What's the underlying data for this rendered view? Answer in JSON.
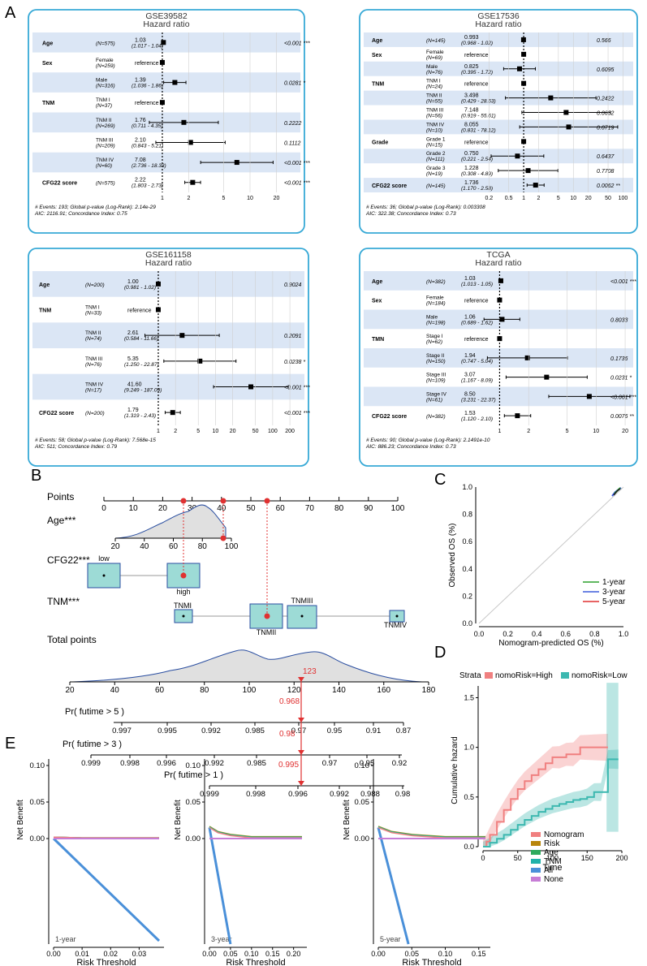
{
  "panel_letters": {
    "A": "A",
    "B": "B",
    "C": "C",
    "D": "D",
    "E": "E"
  },
  "forest": [
    {
      "title": "GSE39582",
      "subtitle": "Hazard ratio",
      "scale": "log",
      "ticks": [
        "1",
        "2",
        "5",
        "10",
        "20"
      ],
      "rows": [
        {
          "var": "Age",
          "level": "",
          "n": "(N=575)",
          "hr": "1.03",
          "ci": "(1.017 - 1.04)",
          "p": "<0.001 ***",
          "est": 1.03,
          "lo": 1.017,
          "hi": 1.04
        },
        {
          "var": "Sex",
          "level": "Female",
          "n": "(N=259)",
          "hr": "reference",
          "ci": "",
          "p": "",
          "est": 1,
          "lo": null,
          "hi": null
        },
        {
          "var": "",
          "level": "Male",
          "n": "(N=316)",
          "hr": "1.39",
          "ci": "(1.036 - 1.86)",
          "p": "0.0281 *",
          "est": 1.39,
          "lo": 1.036,
          "hi": 1.86
        },
        {
          "var": "TNM",
          "level": "TNM I",
          "n": "(N=37)",
          "hr": "reference",
          "ci": "",
          "p": "",
          "est": 1,
          "lo": null,
          "hi": null
        },
        {
          "var": "",
          "level": "TNM II",
          "n": "(N=269)",
          "hr": "1.76",
          "ci": "(0.711 - 4.35)",
          "p": "0.2222",
          "est": 1.76,
          "lo": 0.711,
          "hi": 4.35
        },
        {
          "var": "",
          "level": "TNM III",
          "n": "(N=209)",
          "hr": "2.10",
          "ci": "(0.843 - 5.21)",
          "p": "0.1112",
          "est": 2.1,
          "lo": 0.843,
          "hi": 5.21
        },
        {
          "var": "",
          "level": "TNM IV",
          "n": "(N=60)",
          "hr": "7.08",
          "ci": "(2.736 - 18.33)",
          "p": "<0.001 ***",
          "est": 7.08,
          "lo": 2.736,
          "hi": 18.33
        },
        {
          "var": "CFG22 score",
          "level": "",
          "n": "(N=575)",
          "hr": "2.22",
          "ci": "(1.803 - 2.73)",
          "p": "<0.001 ***",
          "est": 2.22,
          "lo": 1.803,
          "hi": 2.73
        }
      ],
      "footer1": "# Events: 193; Global p-value (Log-Rank): 2.14e-29",
      "footer2": "AIC: 2116.91; Concordance Index: 0.75"
    },
    {
      "title": "GSE17536",
      "subtitle": "Hazard ratio",
      "scale": "log",
      "ticks": [
        "0.2",
        "0.5",
        "1",
        "2",
        "5",
        "10",
        "20",
        "50",
        "100"
      ],
      "rows": [
        {
          "var": "Age",
          "level": "",
          "n": "(N=145)",
          "hr": "0.993",
          "ci": "(0.968 - 1.02)",
          "p": "0.566",
          "est": 0.993,
          "lo": 0.968,
          "hi": 1.02
        },
        {
          "var": "Sex",
          "level": "Female",
          "n": "(N=69)",
          "hr": "reference",
          "ci": "",
          "p": "",
          "est": 1,
          "lo": null,
          "hi": null
        },
        {
          "var": "",
          "level": "Male",
          "n": "(N=76)",
          "hr": "0.825",
          "ci": "(0.395 - 1.72)",
          "p": "0.6095",
          "est": 0.825,
          "lo": 0.395,
          "hi": 1.72
        },
        {
          "var": "TNM",
          "level": "TNM I",
          "n": "(N=24)",
          "hr": "reference",
          "ci": "",
          "p": "",
          "est": 1,
          "lo": null,
          "hi": null
        },
        {
          "var": "",
          "level": "TNM II",
          "n": "(N=55)",
          "hr": "3.498",
          "ci": "(0.429 - 28.53)",
          "p": "0.2422",
          "est": 3.498,
          "lo": 0.429,
          "hi": 28.53
        },
        {
          "var": "",
          "level": "TNM III",
          "n": "(N=56)",
          "hr": "7.148",
          "ci": "(0.919 - 55.61)",
          "p": "0.0602",
          "est": 7.148,
          "lo": 0.919,
          "hi": 55.61
        },
        {
          "var": "",
          "level": "TNM IV",
          "n": "(N=10)",
          "hr": "8.055",
          "ci": "(0.831 - 78.12)",
          "p": "0.0719",
          "est": 8.055,
          "lo": 0.831,
          "hi": 78.12
        },
        {
          "var": "Grade",
          "level": "Grade 1",
          "n": "(N=15)",
          "hr": "reference",
          "ci": "",
          "p": "",
          "est": 1,
          "lo": null,
          "hi": null
        },
        {
          "var": "",
          "level": "Grade 2",
          "n": "(N=111)",
          "hr": "0.750",
          "ci": "(0.221 - 2.54)",
          "p": "0.6437",
          "est": 0.75,
          "lo": 0.221,
          "hi": 2.54
        },
        {
          "var": "",
          "level": "Grade 3",
          "n": "(N=19)",
          "hr": "1.228",
          "ci": "(0.308 - 4.89)",
          "p": "0.7708",
          "est": 1.228,
          "lo": 0.308,
          "hi": 4.89
        },
        {
          "var": "CFG22 score",
          "level": "",
          "n": "(N=145)",
          "hr": "1.736",
          "ci": "(1.170 - 2.58)",
          "p": "0.0062 **",
          "est": 1.736,
          "lo": 1.17,
          "hi": 2.58
        }
      ],
      "footer1": "# Events: 36; Global p-value (Log-Rank): 0.003308",
      "footer2": "AIC: 322.38; Concordance Index: 0.73"
    },
    {
      "title": "GSE161158",
      "subtitle": "Hazard ratio",
      "scale": "log",
      "ticks": [
        "1",
        "2",
        "5",
        "10",
        "20",
        "50",
        "100",
        "200"
      ],
      "rows": [
        {
          "var": "Age",
          "level": "",
          "n": "(N=200)",
          "hr": "1.00",
          "ci": "(0.981 - 1.02)",
          "p": "0.9024",
          "est": 1.0,
          "lo": 0.981,
          "hi": 1.02
        },
        {
          "var": "TNM",
          "level": "TNM I",
          "n": "(N=33)",
          "hr": "reference",
          "ci": "",
          "p": "",
          "est": 1,
          "lo": null,
          "hi": null
        },
        {
          "var": "",
          "level": "TNM II",
          "n": "(N=74)",
          "hr": "2.61",
          "ci": "(0.584 - 11.66)",
          "p": "0.2091",
          "est": 2.61,
          "lo": 0.584,
          "hi": 11.66
        },
        {
          "var": "",
          "level": "TNM III",
          "n": "(N=76)",
          "hr": "5.35",
          "ci": "(1.250 - 22.87)",
          "p": "0.0238 *",
          "est": 5.35,
          "lo": 1.25,
          "hi": 22.87
        },
        {
          "var": "",
          "level": "TNM IV",
          "n": "(N=17)",
          "hr": "41.60",
          "ci": "(9.249 - 187.09)",
          "p": "<0.001 ***",
          "est": 41.6,
          "lo": 9.249,
          "hi": 187.09
        },
        {
          "var": "CFG22 score",
          "level": "",
          "n": "(N=200)",
          "hr": "1.79",
          "ci": "(1.319 - 2.43)",
          "p": "<0.001 ***",
          "est": 1.79,
          "lo": 1.319,
          "hi": 2.43
        }
      ],
      "footer1": "# Events: 58; Global p-value (Log-Rank): 7.568e-15",
      "footer2": "AIC: 511; Concordance Index: 0.79"
    },
    {
      "title": "TCGA",
      "subtitle": "Hazard ratio",
      "scale": "log",
      "ticks": [
        "1",
        "2",
        "5",
        "10",
        "20"
      ],
      "rows": [
        {
          "var": "Age",
          "level": "",
          "n": "(N=382)",
          "hr": "1.03",
          "ci": "(1.013 - 1.05)",
          "p": "<0.001 ***",
          "est": 1.03,
          "lo": 1.013,
          "hi": 1.05
        },
        {
          "var": "Sex",
          "level": "Female",
          "n": "(N=184)",
          "hr": "reference",
          "ci": "",
          "p": "",
          "est": 1,
          "lo": null,
          "hi": null
        },
        {
          "var": "",
          "level": "Male",
          "n": "(N=198)",
          "hr": "1.06",
          "ci": "(0.689 - 1.62)",
          "p": "0.8033",
          "est": 1.06,
          "lo": 0.689,
          "hi": 1.62
        },
        {
          "var": "TMN",
          "level": "Stage I",
          "n": "(N=62)",
          "hr": "reference",
          "ci": "",
          "p": "",
          "est": 1,
          "lo": null,
          "hi": null
        },
        {
          "var": "",
          "level": "Stage II",
          "n": "(N=150)",
          "hr": "1.94",
          "ci": "(0.747 - 5.04)",
          "p": "0.1736",
          "est": 1.94,
          "lo": 0.747,
          "hi": 5.04
        },
        {
          "var": "",
          "level": "Stage III",
          "n": "(N=109)",
          "hr": "3.07",
          "ci": "(1.167 - 8.09)",
          "p": "0.0231 *",
          "est": 3.07,
          "lo": 1.167,
          "hi": 8.09
        },
        {
          "var": "",
          "level": "Stage IV",
          "n": "(N=61)",
          "hr": "8.50",
          "ci": "(3.231 - 22.37)",
          "p": "<0.001 ***",
          "est": 8.5,
          "lo": 3.231,
          "hi": 22.37
        },
        {
          "var": "CFG22 score",
          "level": "",
          "n": "(N=382)",
          "hr": "1.53",
          "ci": "(1.120 - 2.10)",
          "p": "0.0076 **",
          "est": 1.53,
          "lo": 1.12,
          "hi": 2.1
        }
      ],
      "footer1": "# Events: 90; Global p-value (Log-Rank): 2.1491e-10",
      "footer2": "AIC: 886.23; Concordance Index: 0.73"
    }
  ],
  "nomogram": {
    "points_label": "Points",
    "points_ticks": [
      "0",
      "10",
      "20",
      "30",
      "40",
      "50",
      "60",
      "70",
      "80",
      "90",
      "100"
    ],
    "age_label": "Age***",
    "age_ticks": [
      "20",
      "40",
      "60",
      "80",
      "100"
    ],
    "cfg_label": "CFG22***",
    "cfg_low": "low",
    "cfg_high": "high",
    "tnm_label": "TNM***",
    "tnm_levels": [
      "TNMI",
      "TNMII",
      "TNMIII",
      "TNMIV"
    ],
    "total_label": "Total points",
    "total_ticks": [
      "20",
      "40",
      "60",
      "80",
      "100",
      "120",
      "140",
      "160",
      "180"
    ],
    "total_value": "123",
    "pr5_label": "Pr( futime > 5 )",
    "pr5_ticks": [
      "0.997",
      "0.995",
      "0.992",
      "0.985",
      "0.97",
      "0.95",
      "0.91",
      "0.87"
    ],
    "pr5_value": "0.968",
    "pr3_label": "Pr( futime > 3 )",
    "pr3_ticks": [
      "0.999",
      "0.998",
      "0.996",
      "0.992",
      "0.985",
      "0.97",
      "0.95",
      "0.92"
    ],
    "pr3_value": "0.98",
    "pr1_label": "Pr( futime > 1 )",
    "pr1_ticks": [
      "0.999",
      "0.998",
      "0.996",
      "0.992",
      "0.988",
      "0.98"
    ],
    "pr1_value": "0.995"
  },
  "calibration": {
    "ylabel": "Observed OS (%)",
    "xlabel": "Nomogram-predicted OS (%)",
    "ticks": [
      "0.0",
      "0.2",
      "0.4",
      "0.6",
      "0.8",
      "1.0"
    ],
    "legend": [
      {
        "label": "1-year",
        "color": "#2ca02c"
      },
      {
        "label": "3-year",
        "color": "#3b5bdb"
      },
      {
        "label": "5-year",
        "color": "#e03131"
      }
    ]
  },
  "chart_data": [
    {
      "type": "line",
      "title": "Cumulative hazard",
      "xlabel": "Time",
      "ylabel": "Cumulative hazard",
      "strata_label": "Strata",
      "legend": [
        {
          "label": "nomoRisk=High",
          "color": "#f08080"
        },
        {
          "label": "nomoRisk=Low",
          "color": "#3cb8b0"
        }
      ],
      "x_ticks": [
        "0",
        "50",
        "100",
        "150",
        "200"
      ],
      "y_ticks": [
        "0.0",
        "0.5",
        "1.0",
        "1.5"
      ],
      "xlim": [
        0,
        200
      ],
      "ylim": [
        0,
        1.7
      ],
      "series": [
        {
          "name": "nomoRisk=High",
          "x": [
            0,
            5,
            10,
            20,
            30,
            40,
            50,
            60,
            70,
            80,
            90,
            100,
            110,
            120,
            130,
            140,
            150,
            160,
            170,
            180
          ],
          "y": [
            0,
            0.05,
            0.12,
            0.25,
            0.37,
            0.48,
            0.58,
            0.66,
            0.72,
            0.78,
            0.84,
            0.9,
            0.9,
            0.93,
            0.93,
            1.0,
            1.0,
            1.0,
            1.0,
            1.0
          ]
        },
        {
          "name": "nomoRisk=Low",
          "x": [
            0,
            10,
            20,
            30,
            40,
            50,
            60,
            70,
            80,
            90,
            100,
            110,
            120,
            130,
            140,
            150,
            160,
            170,
            180,
            190,
            195
          ],
          "y": [
            0,
            0.04,
            0.08,
            0.12,
            0.17,
            0.22,
            0.27,
            0.31,
            0.35,
            0.38,
            0.41,
            0.43,
            0.45,
            0.47,
            0.48,
            0.5,
            0.55,
            0.55,
            0.88,
            0.88,
            0.88
          ]
        }
      ]
    },
    {
      "type": "line",
      "title": "1-year",
      "xlabel": "Risk Threshold",
      "ylabel": "Net Benefit",
      "x_ticks": [
        "0.00",
        "0.01",
        "0.02",
        "0.03"
      ],
      "xlim": [
        0,
        0.037
      ],
      "y_ticks": [
        "0.00",
        "0.05",
        "0.10"
      ],
      "ylim": [
        -0.06,
        0.11
      ],
      "series": [
        {
          "name": "All",
          "x": [
            0.0,
            0.037
          ],
          "y": [
            0.0,
            -0.055
          ]
        },
        {
          "name": "None",
          "x": [
            0.0,
            0.037
          ],
          "y": [
            0.0,
            0.0
          ]
        },
        {
          "name": "Nomogram",
          "x": [
            0.0,
            0.01,
            0.02,
            0.037
          ],
          "y": [
            0.002,
            0.001,
            0.001,
            0.001
          ]
        }
      ]
    },
    {
      "type": "line",
      "title": "3-year",
      "xlabel": "Risk Threshold",
      "ylabel": "Net Benefit",
      "x_ticks": [
        "0.00",
        "0.05",
        "0.10",
        "0.15",
        "0.20"
      ],
      "xlim": [
        0,
        0.22
      ],
      "y_ticks": [
        "0.00",
        "0.05",
        "0.10"
      ],
      "ylim": [
        -0.06,
        0.11
      ],
      "series": [
        {
          "name": "All",
          "x": [
            0.0,
            0.05
          ],
          "y": [
            0.015,
            -0.06
          ]
        },
        {
          "name": "None",
          "x": [
            0.0,
            0.22
          ],
          "y": [
            0.0,
            0.0
          ]
        },
        {
          "name": "Nomogram",
          "x": [
            0.0,
            0.02,
            0.05,
            0.1,
            0.22
          ],
          "y": [
            0.015,
            0.008,
            0.004,
            0.001,
            0.001
          ]
        }
      ]
    },
    {
      "type": "line",
      "title": "5-year",
      "xlabel": "Risk Threshold",
      "ylabel": "Net Benefit",
      "x_ticks": [
        "0.00",
        "0.05",
        "0.10",
        "0.15"
      ],
      "xlim": [
        0,
        0.16
      ],
      "y_ticks": [
        "0.00",
        "0.05",
        "0.10"
      ],
      "ylim": [
        -0.06,
        0.11
      ],
      "series": [
        {
          "name": "All",
          "x": [
            0.0,
            0.045
          ],
          "y": [
            0.015,
            -0.055
          ]
        },
        {
          "name": "None",
          "x": [
            0.0,
            0.16
          ],
          "y": [
            0.0,
            0.0
          ]
        },
        {
          "name": "Nomogram",
          "x": [
            0.0,
            0.02,
            0.05,
            0.1,
            0.16
          ],
          "y": [
            0.015,
            0.008,
            0.004,
            0.001,
            0.001
          ]
        }
      ]
    }
  ],
  "dca_legend": [
    {
      "label": "Nomogram",
      "color": "#f08080"
    },
    {
      "label": "Risk",
      "color": "#b8860b"
    },
    {
      "label": "Age",
      "color": "#2eaa5e"
    },
    {
      "label": "TNM",
      "color": "#20b2aa"
    },
    {
      "label": "All",
      "color": "#4a90d9"
    },
    {
      "label": "None",
      "color": "#c77dd6"
    }
  ]
}
